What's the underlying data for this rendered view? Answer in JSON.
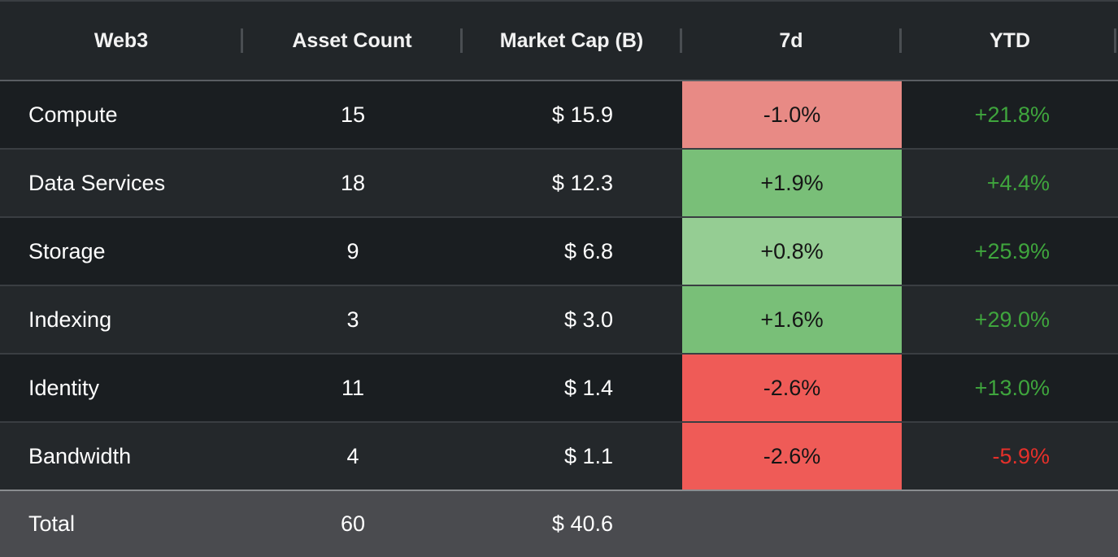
{
  "chart_data": {
    "type": "table",
    "columns": [
      "Web3",
      "Asset Count",
      "Market Cap (B)",
      "7d",
      "YTD"
    ],
    "rows": [
      {
        "name": "Compute",
        "count": "15",
        "cap": "$ 15.9",
        "d7": "-1.0%",
        "ytd": "+21.8%",
        "d7_value": -1.0,
        "ytd_value": 21.8
      },
      {
        "name": "Data Services",
        "count": "18",
        "cap": "$ 12.3",
        "d7": "+1.9%",
        "ytd": "+4.4%",
        "d7_value": 1.9,
        "ytd_value": 4.4
      },
      {
        "name": "Storage",
        "count": "9",
        "cap": "$ 6.8",
        "d7": "+0.8%",
        "ytd": "+25.9%",
        "d7_value": 0.8,
        "ytd_value": 25.9
      },
      {
        "name": "Indexing",
        "count": "3",
        "cap": "$ 3.0",
        "d7": "+1.6%",
        "ytd": "+29.0%",
        "d7_value": 1.6,
        "ytd_value": 29.0
      },
      {
        "name": "Identity",
        "count": "11",
        "cap": "$ 1.4",
        "d7": "-2.6%",
        "ytd": "+13.0%",
        "d7_value": -2.6,
        "ytd_value": 13.0
      },
      {
        "name": "Bandwidth",
        "count": "4",
        "cap": "$ 1.1",
        "d7": "-2.6%",
        "ytd": "-5.9%",
        "d7_value": -2.6,
        "ytd_value": -5.9
      }
    ],
    "total": {
      "name": "Total",
      "count": "60",
      "cap": "$ 40.6"
    }
  },
  "colors": {
    "d7_strong_red": "#ef5b57",
    "d7_light_red": "#e88a85",
    "d7_strong_green": "#79bf78",
    "d7_light_green": "#95cd93",
    "ytd_positive": "#3fa53d",
    "ytd_negative": "#e5302a"
  }
}
